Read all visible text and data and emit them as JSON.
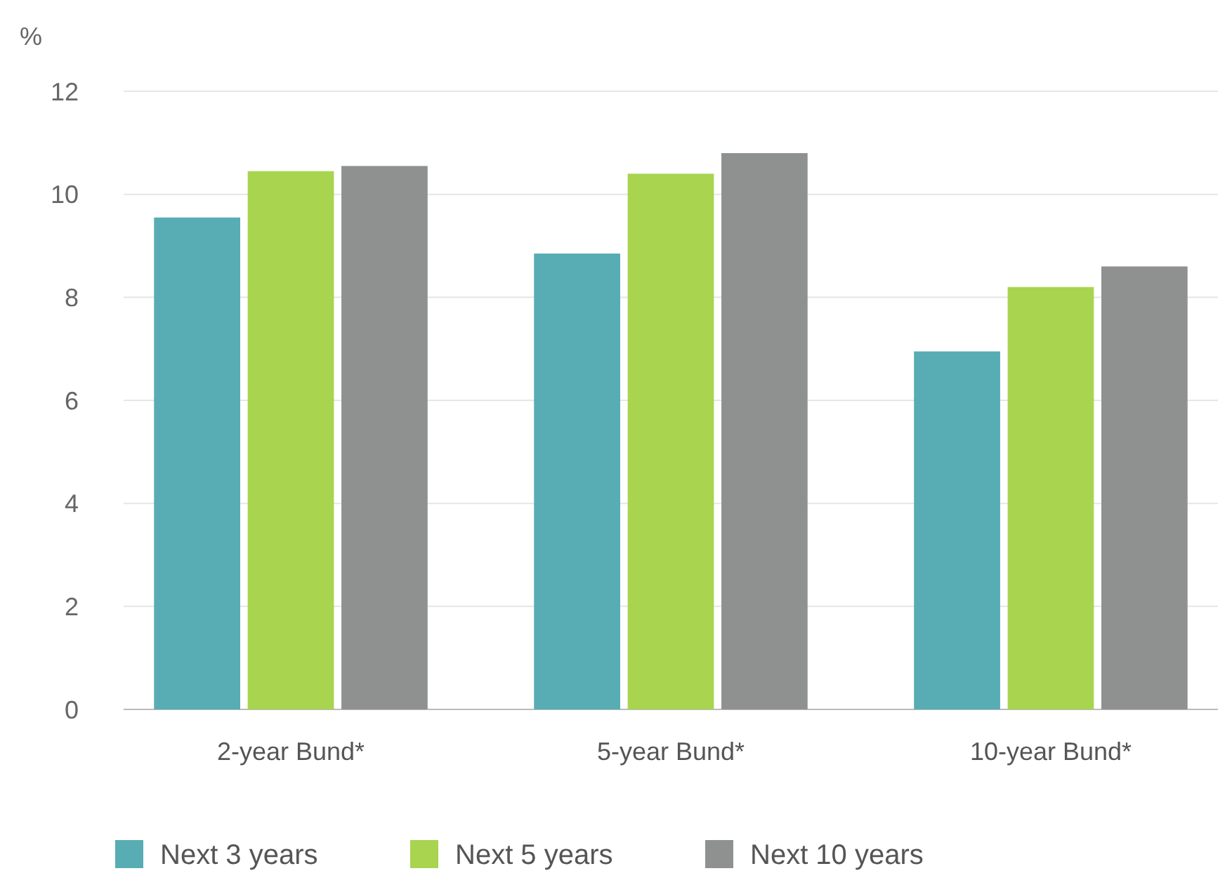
{
  "chart_data": {
    "type": "bar",
    "ylabel": "%",
    "categories": [
      "2-year Bund*",
      "5-year Bund*",
      "10-year Bund*"
    ],
    "series": [
      {
        "name": "Next 3 years",
        "color": "#57adb3",
        "values": [
          9.55,
          8.85,
          6.95
        ]
      },
      {
        "name": "Next 5 years",
        "color": "#a8d44f",
        "values": [
          10.45,
          10.4,
          8.2
        ]
      },
      {
        "name": "Next 10 years",
        "color": "#8f9190",
        "values": [
          10.55,
          10.8,
          8.6
        ]
      }
    ],
    "ylim": [
      0,
      12
    ],
    "yticks": [
      0,
      2,
      4,
      6,
      8,
      10,
      12
    ],
    "grid": "y",
    "legend": "bottom"
  }
}
